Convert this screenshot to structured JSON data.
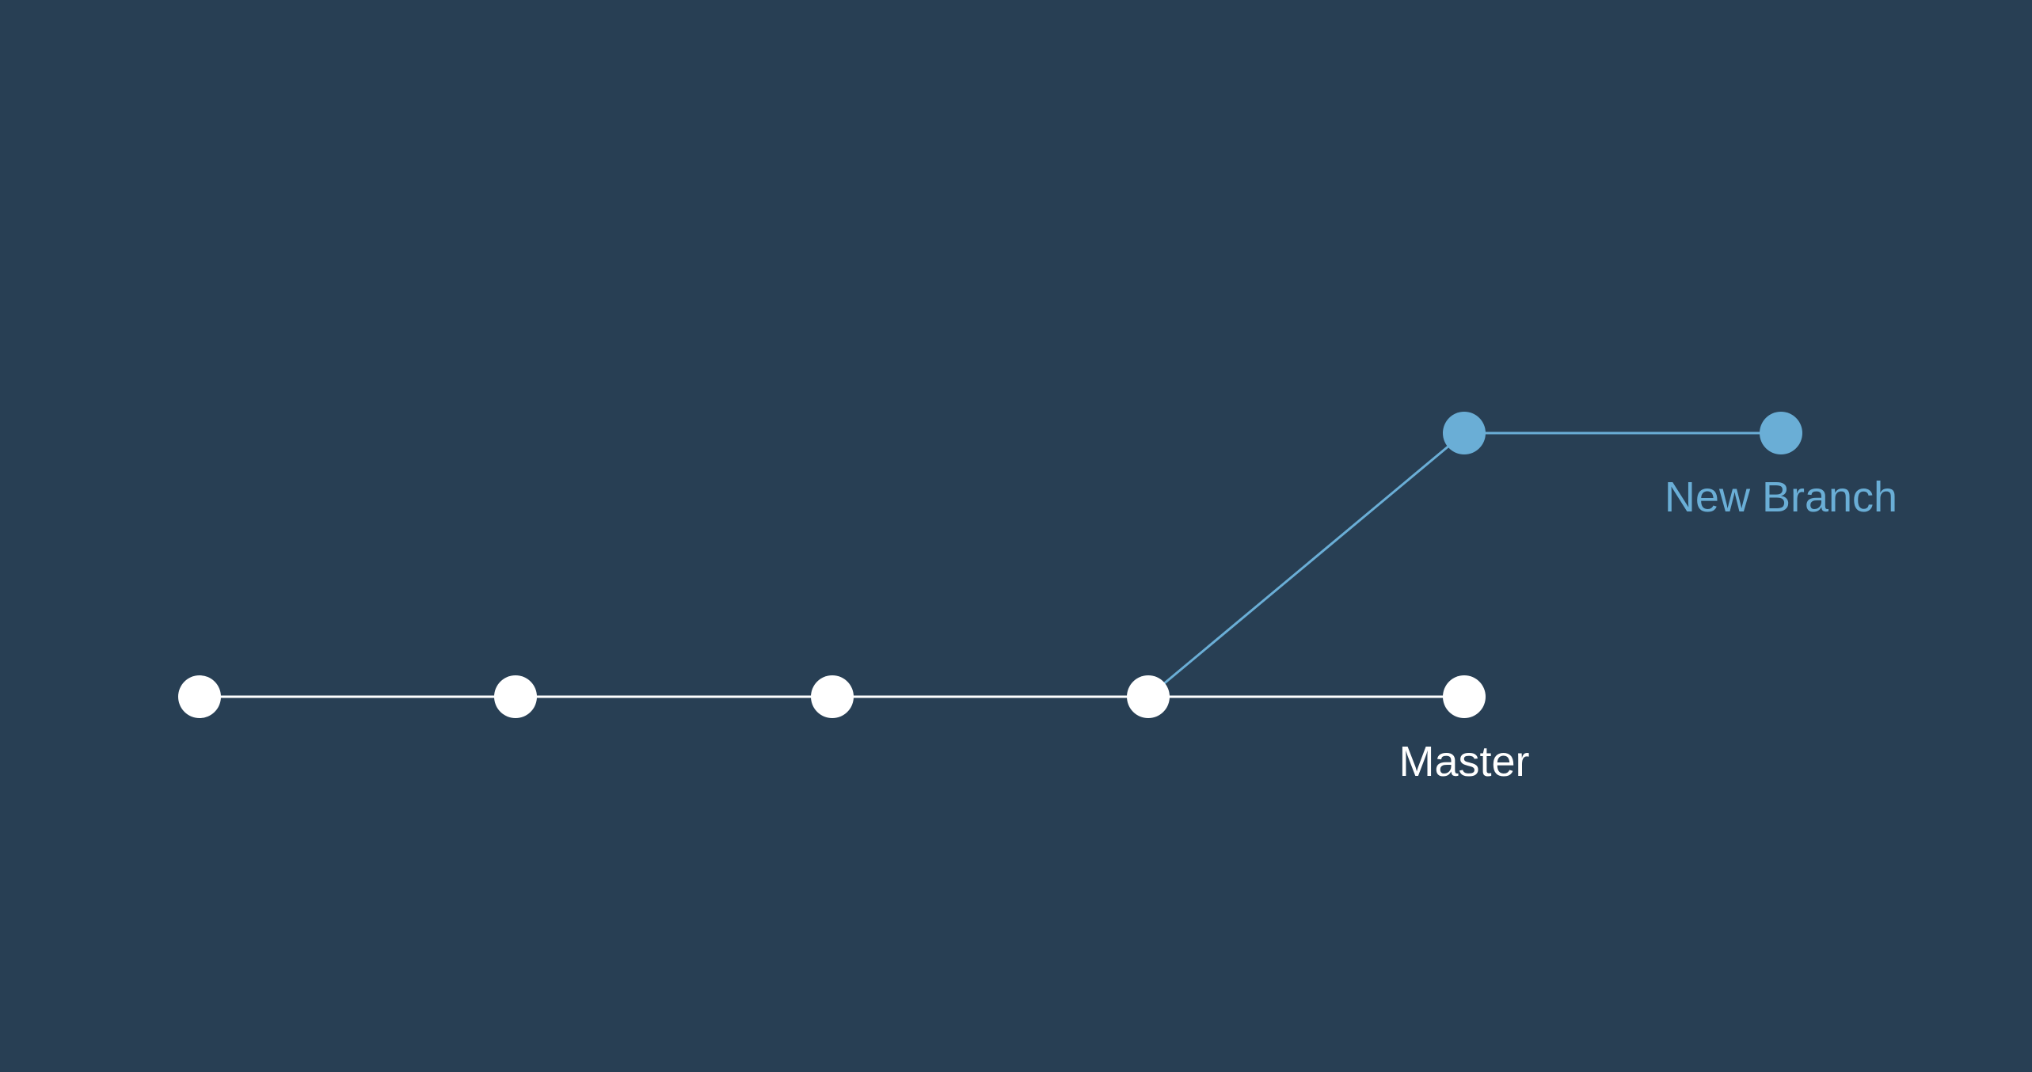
{
  "colors": {
    "background": "#283f54",
    "master": "#ffffff",
    "branch": "#6aaed6"
  },
  "diagram": {
    "master": {
      "label": "Master",
      "commit_count": 5
    },
    "new_branch": {
      "label": "New Branch",
      "commit_count": 2,
      "branches_from_commit": 4
    }
  }
}
